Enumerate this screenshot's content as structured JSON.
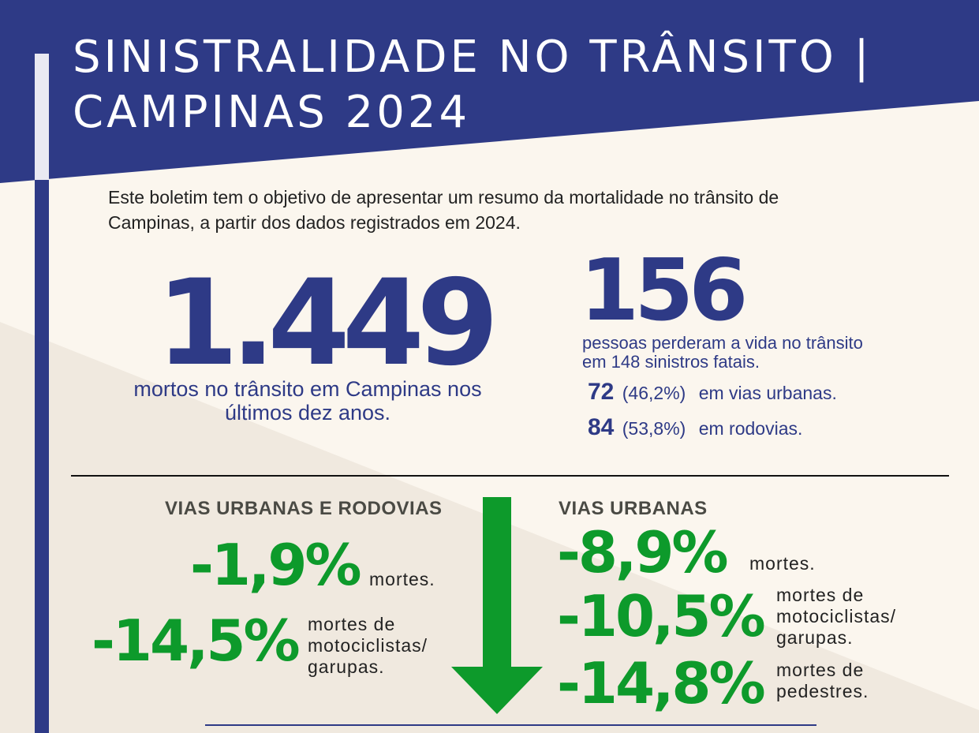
{
  "colors": {
    "navy": "#2e3a86",
    "green": "#0d9a2b",
    "cream": "#fbf6ee",
    "beige": "#f0e9df"
  },
  "header": {
    "title_line1": "SINISTRALIDADE NO TRÂNSITO |",
    "title_line2": "CAMPINAS 2024"
  },
  "intro": "Este boletim tem o objetivo de apresentar um resumo da mortalidade no trânsito de Campinas, a partir dos dados registrados em 2024.",
  "ten_years": {
    "value": "1.449",
    "caption": "mortos no trânsito em Campinas nos últimos dez anos."
  },
  "year_2024": {
    "value": "156",
    "caption": "pessoas perderam a vida no trânsito em 148 sinistros fatais.",
    "urban": {
      "count": "72",
      "pct": "(46,2%)",
      "label": "em vias urbanas."
    },
    "highways": {
      "count": "84",
      "pct": "(53,8%)",
      "label": "em rodovias."
    }
  },
  "left_section": {
    "heading": "VIAS URBANAS E RODOVIAS",
    "items": [
      {
        "value": "-1,9%",
        "label": "mortes."
      },
      {
        "value": "-14,5%",
        "label": "mortes de motociclistas/ garupas."
      }
    ]
  },
  "right_section": {
    "heading": "VIAS URBANAS",
    "items": [
      {
        "value": "-8,9%",
        "label": "mortes."
      },
      {
        "value": "-10,5%",
        "label": "mortes de motociclistas/ garupas."
      },
      {
        "value": "-14,8%",
        "label": "mortes de pedestres."
      }
    ]
  },
  "icons": {
    "trend": "down-arrow-icon"
  }
}
